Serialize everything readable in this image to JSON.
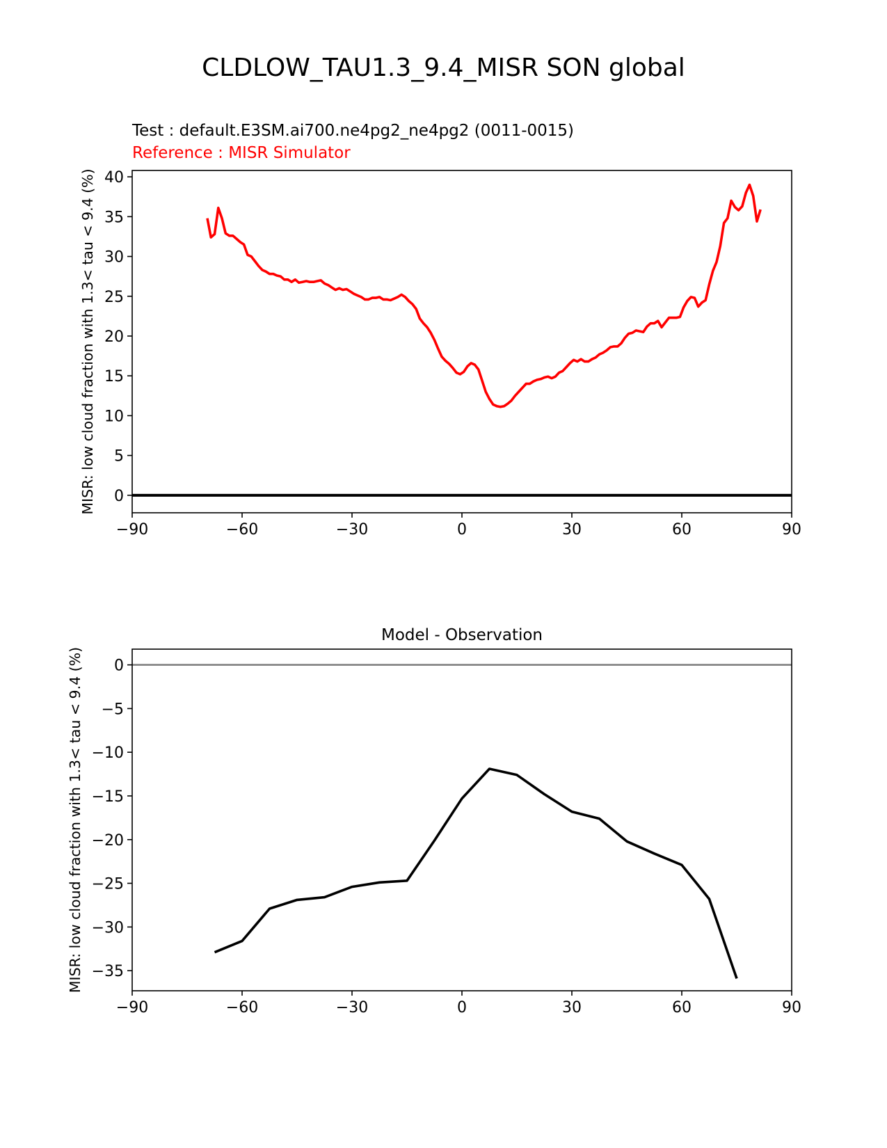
{
  "figure": {
    "title": "CLDLOW_TAU1.3_9.4_MISR SON global",
    "test_label": "Test : default.E3SM.ai700.ne4pg2_ne4pg2 (0011-0015)",
    "reference_label": "Reference : MISR Simulator",
    "colors": {
      "reference": "#ff0000",
      "difference": "#000000",
      "zero_line": "#808080",
      "axes": "#000000"
    }
  },
  "chart_data": [
    {
      "type": "line",
      "title": "",
      "xlabel": "",
      "ylabel": "MISR: low cloud fraction with 1.3< tau < 9.4 (%)",
      "xlim": [
        -90,
        90
      ],
      "ylim": [
        -2.2,
        40.8
      ],
      "xticks": [
        -90,
        -60,
        -30,
        0,
        30,
        60,
        90
      ],
      "xtick_labels": [
        "−90",
        "−60",
        "−30",
        "0",
        "30",
        "60",
        "90"
      ],
      "yticks": [
        0,
        5,
        10,
        15,
        20,
        25,
        30,
        35,
        40
      ],
      "ytick_labels": [
        "0",
        "5",
        "10",
        "15",
        "20",
        "25",
        "30",
        "35",
        "40"
      ],
      "grid": false,
      "hline": 0,
      "series": [
        {
          "name": "Reference : MISR Simulator",
          "color": "#ff0000",
          "x": [
            -69.5,
            -68.5,
            -67.5,
            -66.5,
            -65.5,
            -64.5,
            -63.5,
            -62.5,
            -61.5,
            -60.5,
            -59.5,
            -58.5,
            -57.5,
            -56.5,
            -55.5,
            -54.5,
            -53.5,
            -52.5,
            -51.5,
            -50.5,
            -49.5,
            -48.5,
            -47.5,
            -46.5,
            -45.5,
            -44.5,
            -43.5,
            -42.5,
            -41.5,
            -40.5,
            -39.5,
            -38.5,
            -37.5,
            -36.5,
            -35.5,
            -34.5,
            -33.5,
            -32.5,
            -31.5,
            -30.5,
            -29.5,
            -28.5,
            -27.5,
            -26.5,
            -25.5,
            -24.5,
            -23.5,
            -22.5,
            -21.5,
            -20.5,
            -19.5,
            -18.5,
            -17.5,
            -16.5,
            -15.5,
            -14.5,
            -13.5,
            -12.5,
            -11.5,
            -10.5,
            -9.5,
            -8.5,
            -7.5,
            -6.5,
            -5.5,
            -4.5,
            -3.5,
            -2.5,
            -1.5,
            -0.5,
            0.5,
            1.5,
            2.5,
            3.5,
            4.5,
            5.5,
            6.5,
            7.5,
            8.5,
            9.5,
            10.5,
            11.5,
            12.5,
            13.5,
            14.5,
            15.5,
            16.5,
            17.5,
            18.5,
            19.5,
            20.5,
            21.5,
            22.5,
            23.5,
            24.5,
            25.5,
            26.5,
            27.5,
            28.5,
            29.5,
            30.5,
            31.5,
            32.5,
            33.5,
            34.5,
            35.5,
            36.5,
            37.5,
            38.5,
            39.5,
            40.5,
            41.5,
            42.5,
            43.5,
            44.5,
            45.5,
            46.5,
            47.5,
            48.5,
            49.5,
            50.5,
            51.5,
            52.5,
            53.5,
            54.5,
            55.5,
            56.5,
            57.5,
            58.5,
            59.5,
            60.5,
            61.5,
            62.5,
            63.5,
            64.5,
            65.5,
            66.5,
            67.5,
            68.5,
            69.5,
            70.5,
            71.5,
            72.5,
            73.5,
            74.5,
            75.5,
            76.5,
            77.5,
            78.5,
            79.5,
            80.5,
            81.5
          ],
          "y": [
            34.8,
            32.4,
            32.8,
            36.1,
            34.8,
            32.9,
            32.6,
            32.6,
            32.2,
            31.8,
            31.5,
            30.2,
            30.0,
            29.4,
            28.8,
            28.3,
            28.1,
            27.8,
            27.8,
            27.6,
            27.5,
            27.1,
            27.1,
            26.8,
            27.1,
            26.7,
            26.8,
            26.9,
            26.8,
            26.8,
            26.9,
            27.0,
            26.6,
            26.4,
            26.1,
            25.8,
            26.0,
            25.8,
            25.9,
            25.6,
            25.3,
            25.1,
            24.9,
            24.6,
            24.6,
            24.8,
            24.8,
            24.9,
            24.6,
            24.6,
            24.5,
            24.7,
            24.9,
            25.2,
            24.9,
            24.4,
            24.0,
            23.4,
            22.2,
            21.6,
            21.1,
            20.4,
            19.5,
            18.4,
            17.4,
            16.9,
            16.5,
            16.0,
            15.4,
            15.2,
            15.5,
            16.2,
            16.6,
            16.4,
            15.8,
            14.4,
            13.0,
            12.1,
            11.4,
            11.2,
            11.1,
            11.2,
            11.5,
            11.9,
            12.5,
            13.0,
            13.5,
            14.0,
            14.0,
            14.3,
            14.5,
            14.6,
            14.8,
            14.9,
            14.7,
            14.9,
            15.4,
            15.6,
            16.1,
            16.6,
            17.0,
            16.8,
            17.1,
            16.8,
            16.8,
            17.1,
            17.3,
            17.7,
            17.9,
            18.2,
            18.6,
            18.7,
            18.7,
            19.1,
            19.8,
            20.3,
            20.4,
            20.7,
            20.6,
            20.5,
            21.2,
            21.6,
            21.6,
            21.9,
            21.1,
            21.7,
            22.3,
            22.3,
            22.3,
            22.4,
            23.6,
            24.4,
            24.9,
            24.8,
            23.7,
            24.2,
            24.5,
            26.5,
            28.2,
            29.3,
            31.3,
            34.2,
            34.8,
            37.0,
            36.2,
            35.8,
            36.3,
            38.0,
            39.0,
            37.6,
            34.4,
            35.9
          ]
        }
      ]
    },
    {
      "type": "line",
      "title": "Model - Observation",
      "xlabel": "",
      "ylabel": "MISR: low cloud fraction with 1.3< tau < 9.4 (%)",
      "xlim": [
        -90,
        90
      ],
      "ylim": [
        -37.3,
        1.8
      ],
      "xticks": [
        -90,
        -60,
        -30,
        0,
        30,
        60,
        90
      ],
      "xtick_labels": [
        "−90",
        "−60",
        "−30",
        "0",
        "30",
        "60",
        "90"
      ],
      "yticks": [
        0,
        -5,
        -10,
        -15,
        -20,
        -25,
        -30,
        -35
      ],
      "ytick_labels": [
        "0",
        "−5",
        "−10",
        "−15",
        "−20",
        "−25",
        "−30",
        "−35"
      ],
      "grid": false,
      "hline": 0,
      "series": [
        {
          "name": "",
          "color": "#000000",
          "x": [
            -67.5,
            -60,
            -52.5,
            -45,
            -37.5,
            -30,
            -22.5,
            -15,
            -7.5,
            0,
            7.5,
            15,
            22.5,
            30,
            37.5,
            45,
            52.5,
            60,
            67.5,
            75
          ],
          "y": [
            -32.9,
            -31.6,
            -27.9,
            -26.9,
            -26.6,
            -25.4,
            -24.9,
            -24.7,
            -20.1,
            -15.3,
            -11.9,
            -12.6,
            -14.8,
            -16.8,
            -17.6,
            -20.2,
            -21.6,
            -22.9,
            -26.8,
            -35.9
          ]
        }
      ]
    }
  ]
}
